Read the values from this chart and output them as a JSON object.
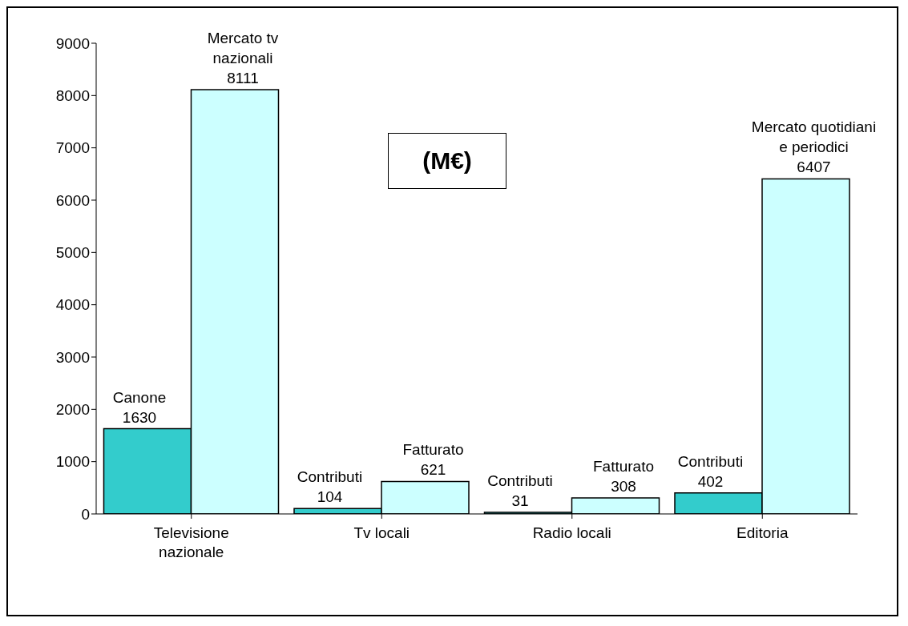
{
  "chart_data": {
    "type": "bar",
    "categories": [
      "Televisione nazionale",
      "Tv locali",
      "Radio locali",
      "Editoria"
    ],
    "series": [
      {
        "color": "#33cccc",
        "values": [
          1630,
          104,
          31,
          402
        ],
        "value_labels": [
          "Canone\n1630",
          "Contributi\n104",
          "Contributi\n31",
          "Contributi\n402"
        ]
      },
      {
        "color": "#ccffff",
        "values": [
          8111,
          621,
          308,
          6407
        ],
        "value_labels": [
          "Mercato tv\nnazionali\n8111",
          "Fatturato\n621",
          "Fatturato\n308",
          "Mercato quotidiani\ne periodici\n6407"
        ]
      }
    ],
    "ylim": [
      0,
      9000
    ],
    "yticks": [
      0,
      1000,
      2000,
      3000,
      4000,
      5000,
      6000,
      7000,
      8000,
      9000
    ],
    "grid": false,
    "legend": false,
    "annotations": [
      "(M€)"
    ]
  }
}
